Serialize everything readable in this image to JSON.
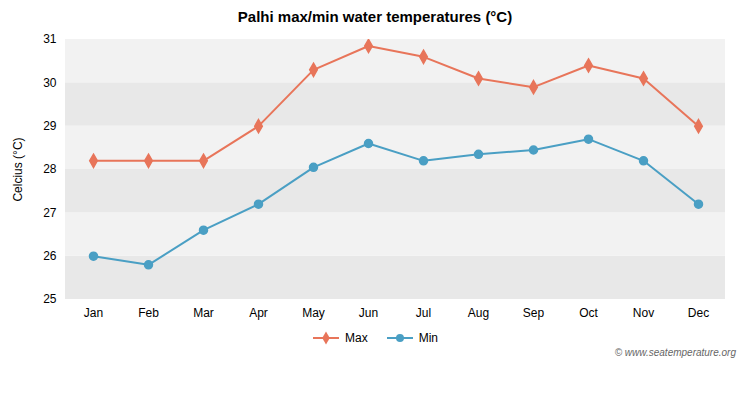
{
  "chart_data": {
    "type": "line",
    "title": "Palhi max/min water temperatures (°C)",
    "ylabel": "Celcius (°C)",
    "categories": [
      "Jan",
      "Feb",
      "Mar",
      "Apr",
      "May",
      "Jun",
      "Jul",
      "Aug",
      "Sep",
      "Oct",
      "Nov",
      "Dec"
    ],
    "series": [
      {
        "name": "Max",
        "color": "#e8755a",
        "marker": "diamond",
        "values": [
          28.2,
          28.2,
          28.2,
          29.0,
          30.3,
          30.85,
          30.6,
          30.1,
          29.9,
          30.4,
          30.1,
          29.0
        ]
      },
      {
        "name": "Min",
        "color": "#4a9fc4",
        "marker": "circle",
        "values": [
          26.0,
          25.8,
          26.6,
          27.2,
          28.05,
          28.6,
          28.2,
          28.35,
          28.45,
          28.7,
          28.2,
          27.2
        ]
      }
    ],
    "ylim": [
      25,
      31
    ],
    "yticks": [
      25,
      26,
      27,
      28,
      29,
      30,
      31
    ],
    "grid": false,
    "legend": "bottom",
    "annotations": [
      "© www.seatemperature.org"
    ]
  }
}
